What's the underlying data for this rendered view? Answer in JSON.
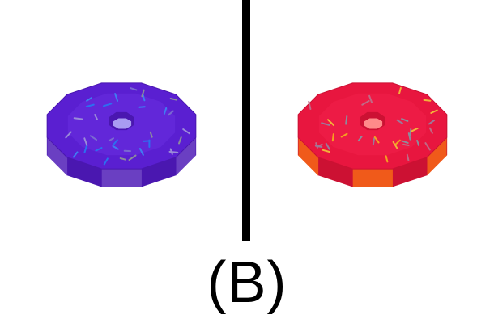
{
  "caption": "(B)",
  "donuts": [
    {
      "label": "left-donut",
      "icing": "#5a1fd1",
      "icing_top": "#6a2ee0",
      "icing_rim": "#4a17b0",
      "dough": "#6a3fc2",
      "hole": "#a99cf2"
    },
    {
      "label": "right-donut",
      "icing": "#e8163f",
      "icing_top": "#f0204a",
      "icing_rim": "#cc1133",
      "dough": "#f05a1a",
      "hole": "#ff8a8a"
    }
  ]
}
